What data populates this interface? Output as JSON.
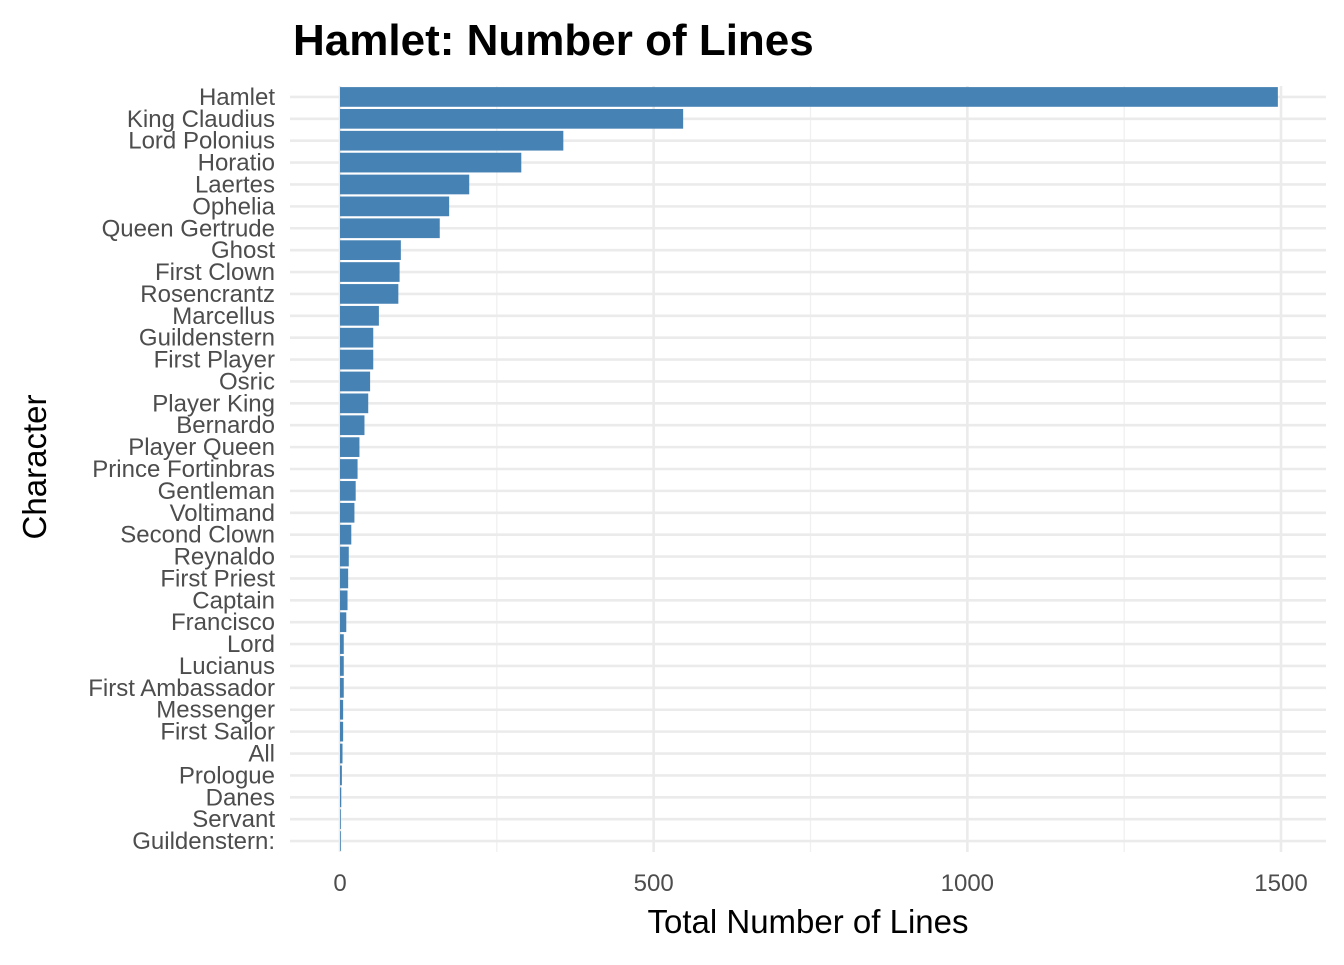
{
  "chart_data": {
    "type": "bar",
    "orientation": "horizontal",
    "title": "Hamlet: Number of Lines",
    "xlabel": "Total Number of Lines",
    "ylabel": "Character",
    "xlim": [
      -50,
      1565
    ],
    "xticks": [
      0,
      500,
      1000,
      1500
    ],
    "grid": true,
    "bar_color": "#4682B4",
    "categories": [
      "Hamlet",
      "King Claudius",
      "Lord Polonius",
      "Horatio",
      "Laertes",
      "Ophelia",
      "Queen Gertrude",
      "Ghost",
      "First Clown",
      "Rosencrantz",
      "Marcellus",
      "Guildenstern",
      "First Player",
      "Osric",
      "Player King",
      "Bernardo",
      "Player Queen",
      "Prince Fortinbras",
      "Gentleman",
      "Voltimand",
      "Second Clown",
      "Reynaldo",
      "First Priest",
      "Captain",
      "Francisco",
      "Lord",
      "Lucianus",
      "First Ambassador",
      "Messenger",
      "First Sailor",
      "All",
      "Prologue",
      "Danes",
      "Servant",
      "Guildenstern:"
    ],
    "values": [
      1495,
      547,
      356,
      289,
      206,
      174,
      159,
      97,
      95,
      93,
      62,
      53,
      53,
      48,
      45,
      39,
      31,
      28,
      25,
      23,
      18,
      14,
      13,
      12,
      10,
      6,
      6,
      6,
      5,
      5,
      4,
      3,
      2,
      1,
      1
    ]
  }
}
